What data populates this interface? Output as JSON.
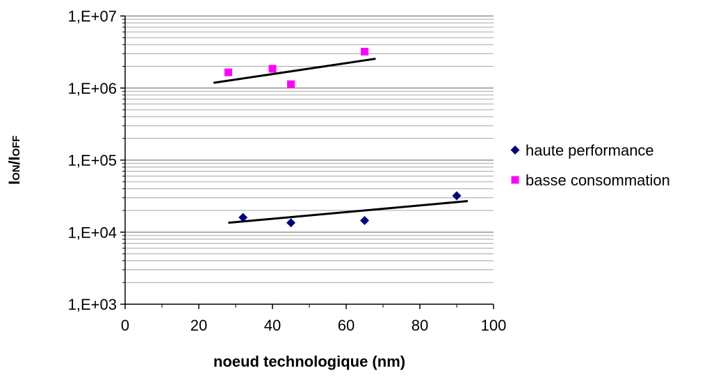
{
  "chart_data": {
    "type": "scatter",
    "xlabel": "noeud technologique (nm)",
    "ylabel_parts": {
      "main1": "I",
      "sub1": "ON",
      "slash": "/",
      "main2": "I",
      "sub2": "OFF"
    },
    "xlim": [
      0,
      100
    ],
    "x_ticks": [
      0,
      20,
      40,
      60,
      80,
      100
    ],
    "x_tick_labels": [
      "0",
      "20",
      "40",
      "60",
      "80",
      "100"
    ],
    "y_scale": "log",
    "ylim": [
      1000,
      10000000
    ],
    "y_ticks": [
      1000,
      10000,
      100000,
      1000000,
      10000000
    ],
    "y_tick_labels": [
      "1,E+03",
      "1,E+04",
      "1,E+05",
      "1,E+06",
      "1,E+07"
    ],
    "grid": {
      "major_y": true,
      "minor_y": true
    },
    "legend_position": "right",
    "series": [
      {
        "name": "haute performance",
        "marker": "diamond",
        "color": "#000080",
        "points": [
          {
            "x": 32,
            "y": 16000
          },
          {
            "x": 45,
            "y": 13500
          },
          {
            "x": 65,
            "y": 14500
          },
          {
            "x": 90,
            "y": 32000
          }
        ],
        "trendline": {
          "x": [
            28,
            93
          ],
          "y": [
            13500,
            27000
          ]
        }
      },
      {
        "name": "basse consommation",
        "marker": "square",
        "color": "#ff00ff",
        "points": [
          {
            "x": 28,
            "y": 1650000
          },
          {
            "x": 40,
            "y": 1850000
          },
          {
            "x": 45,
            "y": 1130000
          },
          {
            "x": 65,
            "y": 3200000
          }
        ],
        "trendline": {
          "x": [
            24,
            68
          ],
          "y": [
            1180000,
            2550000
          ]
        }
      }
    ]
  }
}
